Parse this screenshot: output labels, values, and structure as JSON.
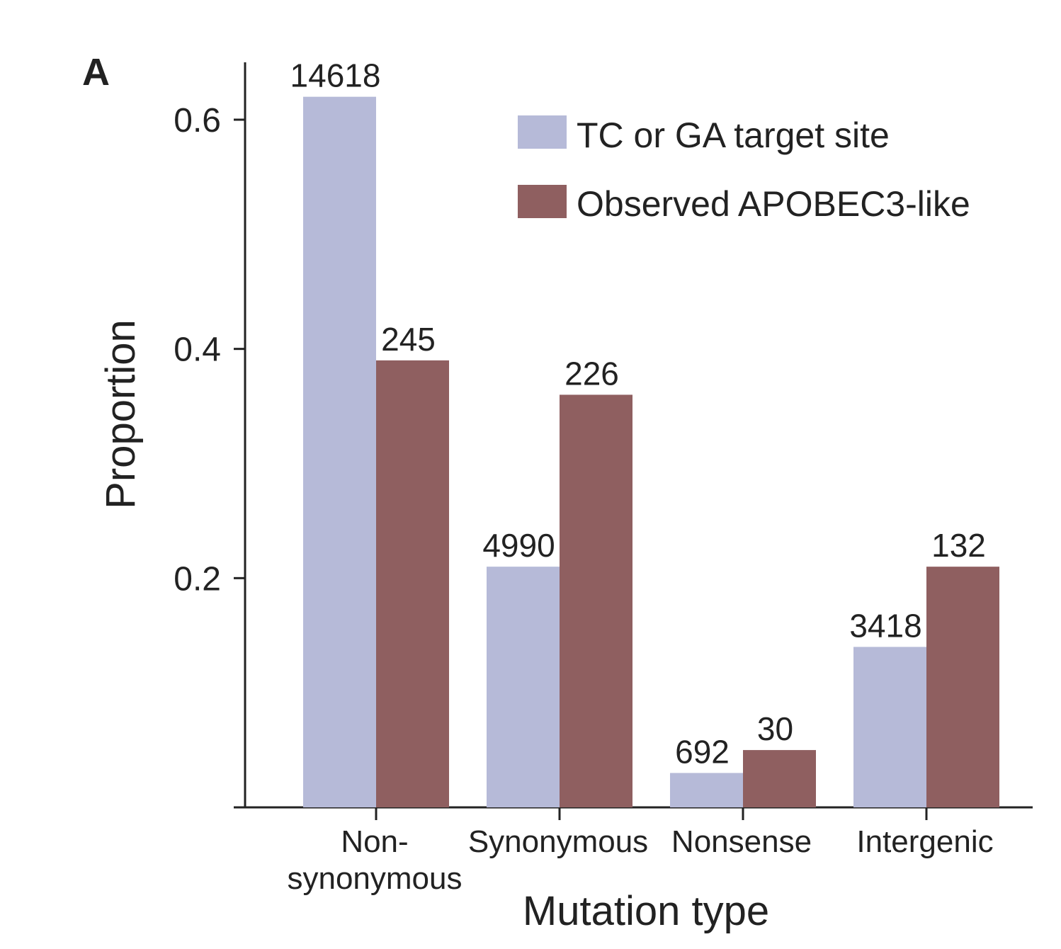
{
  "panel_label": "A",
  "colors": {
    "tc_ga": "#b6bad8",
    "observed": "#8f5f60",
    "axis": "#222222"
  },
  "chart_data": {
    "type": "bar",
    "title": "",
    "xlabel": "Mutation type",
    "ylabel": "Proportion",
    "ylim": [
      0,
      0.6
    ],
    "yticks": [
      "0.2",
      "0.4",
      "0.6"
    ],
    "grid": false,
    "legend_position": "top-right",
    "categories": [
      [
        "Non-",
        "synonymous"
      ],
      [
        "Synonymous"
      ],
      [
        "Nonsense"
      ],
      [
        "Intergenic"
      ]
    ],
    "series": [
      {
        "name": "TC or GA target site",
        "color": "#b6bad8",
        "values": [
          0.62,
          0.21,
          0.03,
          0.14
        ],
        "labels": [
          "14618",
          "4990",
          "692",
          "3418"
        ]
      },
      {
        "name": "Observed APOBEC3-like",
        "color": "#8f5f60",
        "values": [
          0.39,
          0.36,
          0.05,
          0.21
        ],
        "labels": [
          "245",
          "226",
          "30",
          "132"
        ]
      }
    ]
  }
}
